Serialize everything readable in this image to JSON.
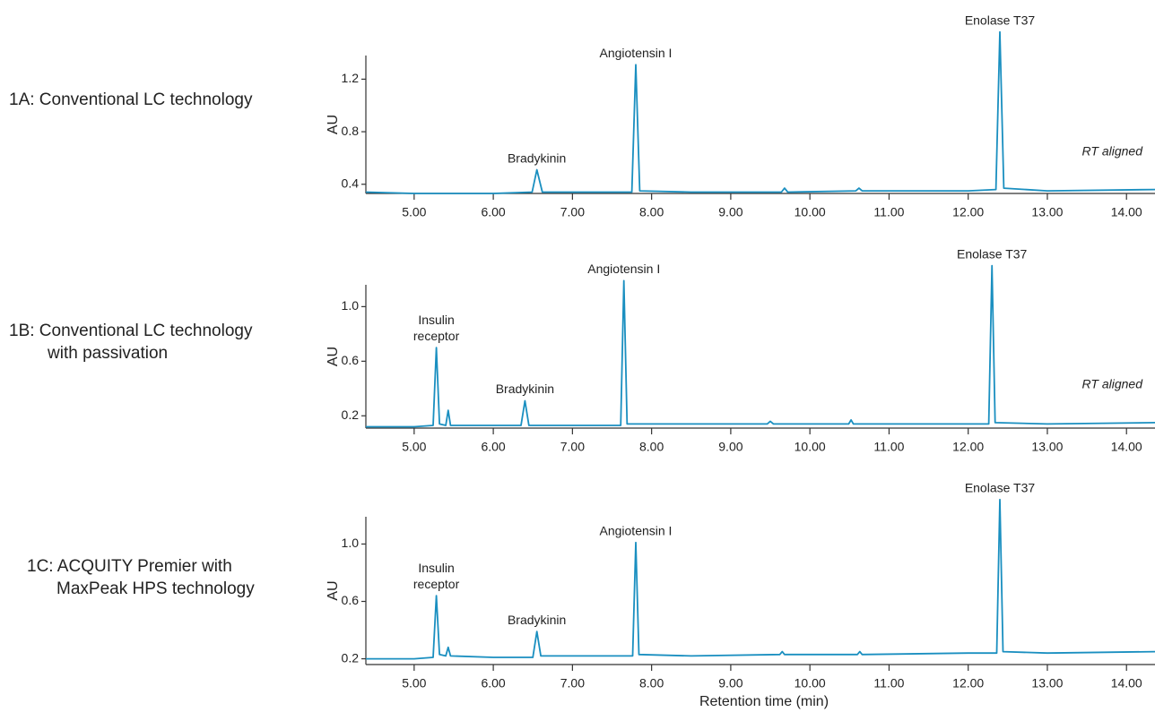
{
  "chart_data": [
    {
      "type": "line",
      "label": [
        "1A: Conventional LC technology"
      ],
      "ylabel": "AU",
      "note": "RT aligned",
      "color": "#1a8fc0",
      "xlim": [
        4.39,
        14.36
      ],
      "ylim": [
        0.33,
        1.38
      ],
      "xticks": [
        {
          "value": 5,
          "label": "5.00"
        },
        {
          "value": 6,
          "label": "6.00"
        },
        {
          "value": 7,
          "label": "7.00"
        },
        {
          "value": 8,
          "label": "8.00"
        },
        {
          "value": 9,
          "label": "9.00"
        },
        {
          "value": 10,
          "label": "10.00"
        },
        {
          "value": 11,
          "label": "11.00"
        },
        {
          "value": 12,
          "label": "12.00"
        },
        {
          "value": 13,
          "label": "13.00"
        },
        {
          "value": 14,
          "label": "14.00"
        }
      ],
      "yticks": [
        0.4,
        0.8,
        1.2
      ],
      "x": [
        4.39,
        5.0,
        6.0,
        6.49,
        6.55,
        6.62,
        7.0,
        7.75,
        7.8,
        7.85,
        8.5,
        9.64,
        9.68,
        9.72,
        10.58,
        10.62,
        10.66,
        12.0,
        12.35,
        12.4,
        12.45,
        13.0,
        14.36
      ],
      "values": [
        0.34,
        0.33,
        0.33,
        0.34,
        0.51,
        0.34,
        0.34,
        0.34,
        1.31,
        0.35,
        0.34,
        0.34,
        0.37,
        0.34,
        0.35,
        0.37,
        0.35,
        0.35,
        0.36,
        1.56,
        0.37,
        0.35,
        0.36
      ],
      "annotations": [
        {
          "text": [
            "Bradykinin"
          ],
          "x": 6.55,
          "y": 0.51
        },
        {
          "text": [
            "Angiotensin I"
          ],
          "x": 7.8,
          "y": 1.31
        },
        {
          "text": [
            "Enolase T37"
          ],
          "x": 12.4,
          "y": 1.56
        }
      ]
    },
    {
      "type": "line",
      "label": [
        "1B: Conventional LC technology",
        "with passivation"
      ],
      "ylabel": "AU",
      "note": "RT aligned",
      "color": "#1a8fc0",
      "xlim": [
        4.39,
        14.36
      ],
      "ylim": [
        0.11,
        1.16
      ],
      "xticks": [
        {
          "value": 5,
          "label": "5.00"
        },
        {
          "value": 6,
          "label": "6.00"
        },
        {
          "value": 7,
          "label": "7.00"
        },
        {
          "value": 8,
          "label": "8.00"
        },
        {
          "value": 9,
          "label": "9.00"
        },
        {
          "value": 10,
          "label": "10.00"
        },
        {
          "value": 11,
          "label": "11.00"
        },
        {
          "value": 12,
          "label": "12.00"
        },
        {
          "value": 13,
          "label": "13.00"
        },
        {
          "value": 14,
          "label": "14.00"
        }
      ],
      "yticks": [
        0.2,
        0.6,
        {
          "value": 1.0,
          "label": "1.0"
        }
      ],
      "x": [
        4.39,
        5.0,
        5.24,
        5.28,
        5.32,
        5.4,
        5.43,
        5.46,
        6.0,
        6.35,
        6.4,
        6.45,
        7.0,
        7.61,
        7.65,
        7.69,
        8.5,
        9.46,
        9.5,
        9.54,
        10.49,
        10.52,
        10.55,
        12.0,
        12.26,
        12.3,
        12.34,
        13.0,
        14.36
      ],
      "values": [
        0.12,
        0.12,
        0.13,
        0.7,
        0.14,
        0.13,
        0.24,
        0.13,
        0.13,
        0.13,
        0.31,
        0.13,
        0.13,
        0.13,
        1.19,
        0.14,
        0.14,
        0.14,
        0.16,
        0.14,
        0.14,
        0.17,
        0.14,
        0.14,
        0.14,
        1.3,
        0.15,
        0.14,
        0.15
      ],
      "annotations": [
        {
          "text": [
            "Insulin",
            "receptor"
          ],
          "x": 5.28,
          "y": 0.7
        },
        {
          "text": [
            "Bradykinin"
          ],
          "x": 6.4,
          "y": 0.31
        },
        {
          "text": [
            "Angiotensin I"
          ],
          "x": 7.65,
          "y": 1.19
        },
        {
          "text": [
            "Enolase T37"
          ],
          "x": 12.3,
          "y": 1.3
        }
      ]
    },
    {
      "type": "line",
      "label": [
        "1C: ACQUITY Premier with",
        "MaxPeak HPS technology"
      ],
      "ylabel": "AU",
      "xlabel": "Retention time (min)",
      "color": "#1a8fc0",
      "xlim": [
        4.39,
        14.36
      ],
      "ylim": [
        0.16,
        1.19
      ],
      "xticks": [
        {
          "value": 5,
          "label": "5.00"
        },
        {
          "value": 6,
          "label": "6.00"
        },
        {
          "value": 7,
          "label": "7.00"
        },
        {
          "value": 8,
          "label": "8.00"
        },
        {
          "value": 9,
          "label": "9.00"
        },
        {
          "value": 10,
          "label": "10.00"
        },
        {
          "value": 11,
          "label": "11.00"
        },
        {
          "value": 12,
          "label": "12.00"
        },
        {
          "value": 13,
          "label": "13.00"
        },
        {
          "value": 14,
          "label": "14.00"
        }
      ],
      "yticks": [
        0.2,
        0.6,
        {
          "value": 1.0,
          "label": "1.0"
        }
      ],
      "x": [
        4.39,
        4.8,
        5.0,
        5.24,
        5.28,
        5.32,
        5.4,
        5.43,
        5.46,
        6.0,
        6.5,
        6.55,
        6.6,
        7.0,
        7.76,
        7.8,
        7.84,
        8.5,
        9.62,
        9.65,
        9.68,
        10.6,
        10.63,
        10.66,
        12.0,
        12.36,
        12.4,
        12.44,
        13.0,
        14.36
      ],
      "values": [
        0.2,
        0.2,
        0.2,
        0.21,
        0.64,
        0.23,
        0.22,
        0.28,
        0.22,
        0.21,
        0.21,
        0.39,
        0.22,
        0.22,
        0.22,
        1.01,
        0.23,
        0.22,
        0.23,
        0.25,
        0.23,
        0.23,
        0.25,
        0.23,
        0.24,
        0.24,
        1.31,
        0.25,
        0.24,
        0.25
      ],
      "annotations": [
        {
          "text": [
            "Insulin",
            "receptor"
          ],
          "x": 5.28,
          "y": 0.64
        },
        {
          "text": [
            "Bradykinin"
          ],
          "x": 6.55,
          "y": 0.39
        },
        {
          "text": [
            "Angiotensin I"
          ],
          "x": 7.8,
          "y": 1.01
        },
        {
          "text": [
            "Enolase T37"
          ],
          "x": 12.4,
          "y": 1.31
        }
      ]
    }
  ]
}
